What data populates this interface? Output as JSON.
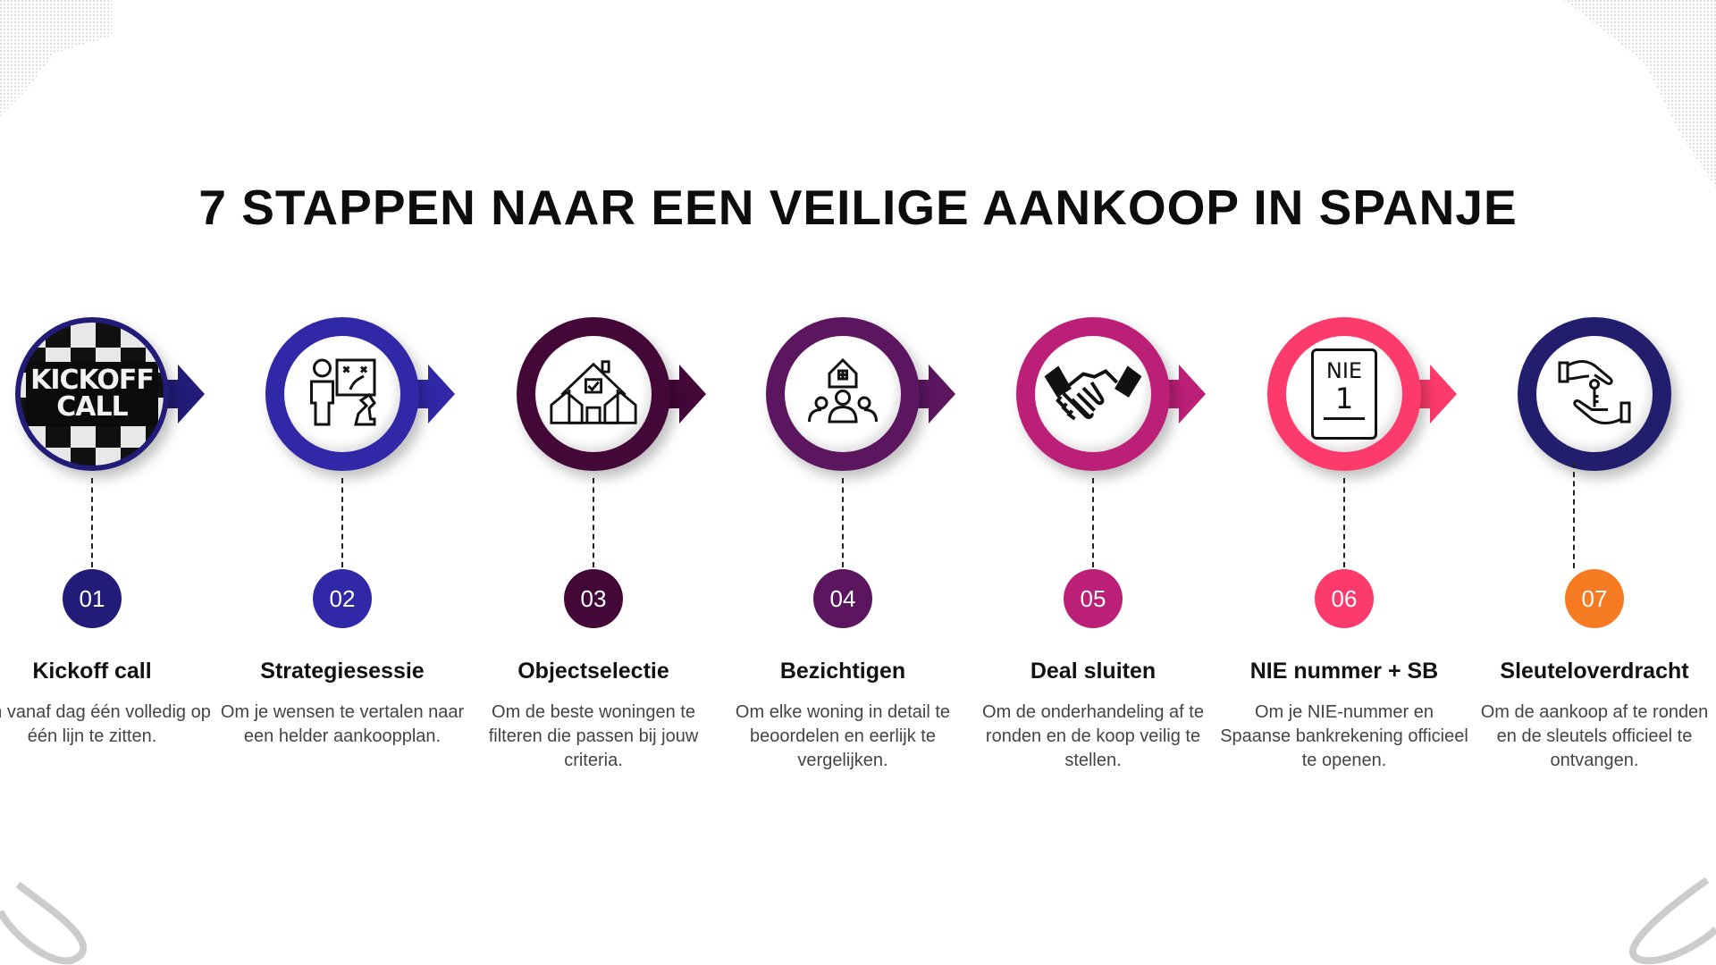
{
  "title": "7 STAPPEN NAAR EEN VEILIGE AANKOOP IN SPANJE",
  "steps": [
    {
      "number": "01",
      "title": "Kickoff call",
      "desc": "Om vanaf dag één volledig op één lijn te zitten.",
      "icon": "kickoff-call-badge",
      "badge_text": "KICKOFF CALL",
      "ring": "#221c78",
      "num_color": "#221c78"
    },
    {
      "number": "02",
      "title": "Strategiesessie",
      "desc": "Om je wensen te vertalen naar een helder aankoopplan.",
      "icon": "strategy-person-icon",
      "ring": "#3128a8",
      "num_color": "#3128a8"
    },
    {
      "number": "03",
      "title": "Objectselectie",
      "desc": "Om de beste woningen te filteren die passen bij jouw criteria.",
      "icon": "houses-check-icon",
      "ring": "#430838",
      "num_color": "#430838"
    },
    {
      "number": "04",
      "title": "Bezichtigen",
      "desc": "Om elke woning in detail te beoordelen en eerlijk te vergelijken.",
      "icon": "house-people-icon",
      "ring": "#5c1660",
      "num_color": "#5c1660"
    },
    {
      "number": "05",
      "title": "Deal sluiten",
      "desc": "Om de onderhandeling af te ronden en de koop veilig te stellen.",
      "icon": "handshake-icon",
      "ring": "#bc1f78",
      "num_color": "#bc1f78"
    },
    {
      "number": "06",
      "title": "NIE nummer + SB",
      "desc": "Om je NIE-nummer en Spaanse bankrekening officieel te openen.",
      "icon": "nie-document-icon",
      "nie_text": "NIE",
      "nie_num": "1",
      "ring": "#fd3a6c",
      "num_color": "#fd3a6c"
    },
    {
      "number": "07",
      "title": "Sleuteloverdracht",
      "desc": "Om de aankoop af te ronden en de sleutels officieel te ontvangen.",
      "icon": "key-handover-icon",
      "ring": "#231d6e",
      "num_color": "#f57a22"
    }
  ]
}
